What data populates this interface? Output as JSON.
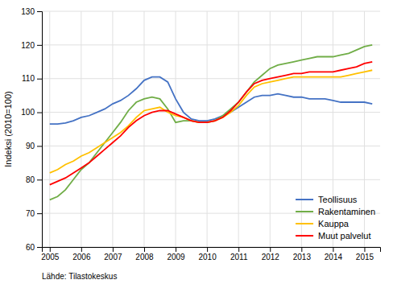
{
  "chart_data": {
    "type": "line",
    "ylabel": "Indeksi (2010=100)",
    "annotations": [
      "Lähde: Tilastokeskus"
    ],
    "xlim": [
      2004.75,
      2015.5
    ],
    "xticks": [
      2005,
      2006,
      2007,
      2008,
      2009,
      2010,
      2011,
      2012,
      2013,
      2014,
      2015
    ],
    "ylim": [
      60,
      130
    ],
    "yticks": [
      60,
      70,
      80,
      90,
      100,
      110,
      120,
      130
    ],
    "grid": true,
    "legend": "lower right",
    "x": [
      2005.0,
      2005.25,
      2005.5,
      2005.75,
      2006.0,
      2006.25,
      2006.5,
      2006.75,
      2007.0,
      2007.25,
      2007.5,
      2007.75,
      2008.0,
      2008.25,
      2008.5,
      2008.75,
      2009.0,
      2009.25,
      2009.5,
      2009.75,
      2010.0,
      2010.25,
      2010.5,
      2010.75,
      2011.0,
      2011.25,
      2011.5,
      2011.75,
      2012.0,
      2012.25,
      2012.5,
      2012.75,
      2013.0,
      2013.25,
      2013.5,
      2013.75,
      2014.0,
      2014.25,
      2014.5,
      2014.75,
      2015.0,
      2015.25
    ],
    "series": [
      {
        "name": "Teollisuus",
        "color": "#4472C4",
        "values": [
          96.5,
          96.5,
          96.8,
          97.5,
          98.5,
          99.0,
          100.0,
          101.0,
          102.5,
          103.5,
          105.0,
          107.0,
          109.5,
          110.5,
          110.5,
          109.0,
          104.0,
          100.0,
          98.0,
          97.5,
          97.5,
          98.0,
          99.0,
          100.0,
          101.5,
          103.0,
          104.5,
          105.0,
          105.0,
          105.5,
          105.0,
          104.5,
          104.5,
          104.0,
          104.0,
          104.0,
          103.5,
          103.0,
          103.0,
          103.0,
          103.0,
          102.5
        ]
      },
      {
        "name": "Rakentaminen",
        "color": "#70AD47",
        "values": [
          74.0,
          75.0,
          77.0,
          80.0,
          83.0,
          85.0,
          88.0,
          91.0,
          94.0,
          97.0,
          100.5,
          103.0,
          104.0,
          104.5,
          104.0,
          101.0,
          97.0,
          97.5,
          97.5,
          97.0,
          97.0,
          97.5,
          99.0,
          101.0,
          103.0,
          106.0,
          109.0,
          111.0,
          113.0,
          114.0,
          114.5,
          115.0,
          115.5,
          116.0,
          116.5,
          116.5,
          116.5,
          117.0,
          117.5,
          118.5,
          119.5,
          120.0
        ]
      },
      {
        "name": "Kauppa",
        "color": "#FFC000",
        "values": [
          82.0,
          83.0,
          84.5,
          85.5,
          87.0,
          88.0,
          89.5,
          91.0,
          92.5,
          94.0,
          96.0,
          98.5,
          100.5,
          101.0,
          101.5,
          100.0,
          99.0,
          98.5,
          97.5,
          97.0,
          97.0,
          97.5,
          98.5,
          100.0,
          102.0,
          105.0,
          107.5,
          108.5,
          109.0,
          109.5,
          110.0,
          110.5,
          110.5,
          110.5,
          110.5,
          110.5,
          110.5,
          110.5,
          111.0,
          111.5,
          112.0,
          112.5
        ]
      },
      {
        "name": "Muut palvelut",
        "color": "#FF0000",
        "values": [
          78.5,
          79.5,
          80.5,
          82.0,
          83.5,
          85.0,
          87.0,
          89.0,
          91.0,
          93.0,
          95.5,
          97.5,
          99.0,
          100.0,
          100.5,
          100.5,
          99.5,
          98.5,
          97.5,
          97.0,
          97.0,
          97.5,
          98.5,
          100.5,
          103.0,
          106.0,
          108.5,
          109.5,
          110.0,
          110.5,
          111.0,
          111.5,
          111.5,
          112.0,
          112.0,
          112.0,
          112.0,
          112.5,
          113.0,
          113.5,
          114.5,
          115.0
        ]
      }
    ]
  }
}
